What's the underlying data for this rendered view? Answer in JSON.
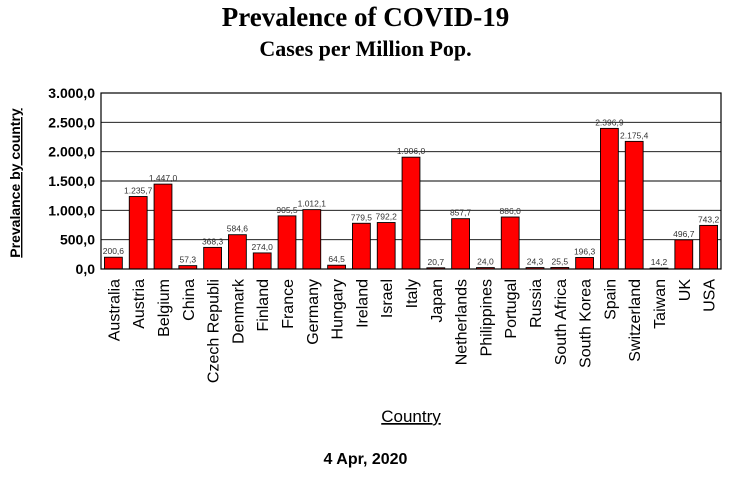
{
  "chart_data": {
    "type": "bar",
    "title": "Prevalence of COVID-19",
    "subtitle": "Cases per Million Pop.",
    "xlabel": "Country",
    "ylabel": "Prevalance by country",
    "date": "4 Apr, 2020",
    "ylim": [
      0,
      3000
    ],
    "yticks": [
      "0,0",
      "500,0",
      "1.000,0",
      "1.500,0",
      "2.000,0",
      "2.500,0",
      "3.000,0"
    ],
    "bar_color": "#ff0000",
    "grid": true,
    "categories": [
      "Australia",
      "Austria",
      "Belgium",
      "China",
      "Czech Republi",
      "Denmark",
      "Finland",
      "France",
      "Germany",
      "Hungary",
      "Ireland",
      "Israel",
      "Italy",
      "Japan",
      "Netherlands",
      "Philippines",
      "Portugal",
      "Russia",
      "South Africa",
      "South Korea",
      "Spain",
      "Switzerland",
      "Taiwan",
      "UK",
      "USA"
    ],
    "values": [
      200.6,
      1235.7,
      1447.0,
      57.3,
      368.3,
      584.6,
      274.0,
      905.5,
      1012.1,
      64.5,
      779.5,
      792.2,
      1906.0,
      20.7,
      857.7,
      24.0,
      886.0,
      24.3,
      25.5,
      196.3,
      2396.9,
      2175.4,
      14.2,
      496.7,
      743.2
    ],
    "value_labels": [
      "200,6",
      "1.235,7",
      "1.447,0",
      "57,3",
      "368,3",
      "584,6",
      "274,0",
      "905,5",
      "1.012,1",
      "64,5",
      "779,5",
      "792,2",
      "1.906,0",
      "20,7",
      "857,7",
      "24,0",
      "886,0",
      "24,3",
      "25,5",
      "196,3",
      "2.396,9",
      "2.175,4",
      "14,2",
      "496,7",
      "743,2"
    ]
  }
}
